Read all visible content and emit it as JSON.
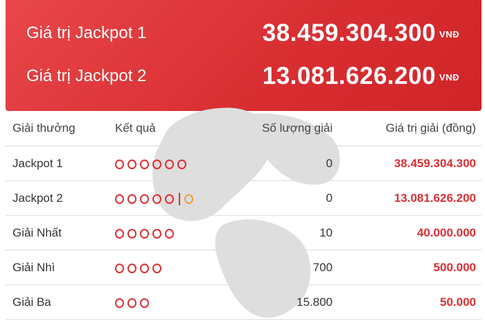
{
  "jackpot_summary": {
    "rows": [
      {
        "label": "Giá trị Jackpot 1",
        "value": "38.459.304.300",
        "unit": "VNĐ"
      },
      {
        "label": "Giá trị Jackpot 2",
        "value": "13.081.626.200",
        "unit": "VNĐ"
      }
    ]
  },
  "prize_table": {
    "headers": [
      "Giải thưởng",
      "Kết quả",
      "Số lượng giải",
      "Giá trị giải (đồng)"
    ],
    "rows": [
      {
        "name": "Jackpot 1",
        "result": {
          "red": 6,
          "gold": 0
        },
        "count": "0",
        "value": "38.459.304.300"
      },
      {
        "name": "Jackpot 2",
        "result": {
          "red": 5,
          "gold": 1
        },
        "count": "0",
        "value": "13.081.626.200"
      },
      {
        "name": "Giải Nhất",
        "result": {
          "red": 5,
          "gold": 0
        },
        "count": "10",
        "value": "40.000.000"
      },
      {
        "name": "Giải Nhì",
        "result": {
          "red": 4,
          "gold": 0
        },
        "count": "700",
        "value": "500.000"
      },
      {
        "name": "Giải Ba",
        "result": {
          "red": 3,
          "gold": 0
        },
        "count": "15.800",
        "value": "50.000"
      }
    ]
  },
  "colors": {
    "accent": "#d92f33",
    "bonus_ball": "#e8a23a",
    "watermark": "#dedede"
  },
  "icons": {
    "result_ball": "circle-outline",
    "watermark": "clover-logo"
  }
}
